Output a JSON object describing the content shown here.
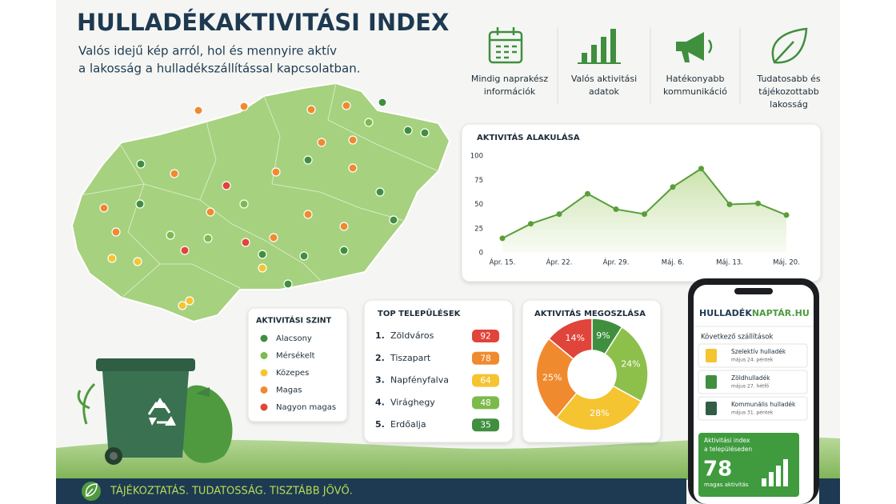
{
  "header": {
    "title": "HULLADÉKAKTIVITÁSI INDEX",
    "subtitle": [
      "Valós idejű kép arról, hol és mennyire aktív",
      "a lakosság a hulladékszállítással kapcsolatban."
    ]
  },
  "features": [
    {
      "label": [
        "Mindig naprakész",
        "információk"
      ]
    },
    {
      "label": [
        "Valós aktivitási",
        "adatok"
      ]
    },
    {
      "label": [
        "Hatékonyabb",
        "kommunikáció"
      ]
    },
    {
      "label": [
        "Tudatosabb és",
        "tájékozottabb",
        "lakosság"
      ]
    }
  ],
  "legend": {
    "title": "AKTIVITÁSI SZINT",
    "items": [
      {
        "label": "Alacsony",
        "color": "#3f8f3f"
      },
      {
        "label": "Mérsékelt",
        "color": "#7cba4a"
      },
      {
        "label": "Közepes",
        "color": "#f5c431"
      },
      {
        "label": "Magas",
        "color": "#f08a2e"
      },
      {
        "label": "Nagyon magas",
        "color": "#e0443a"
      }
    ]
  },
  "top": {
    "title": "TOP TELEPÜLÉSEK",
    "rows": [
      {
        "rank": "1.",
        "name": "Zöldváros",
        "score": 92,
        "color": "#e0443a"
      },
      {
        "rank": "2.",
        "name": "Tiszapart",
        "score": 78,
        "color": "#f08a2e"
      },
      {
        "rank": "3.",
        "name": "Napfényfalva",
        "score": 64,
        "color": "#f5c431"
      },
      {
        "rank": "4.",
        "name": "Virághegy",
        "score": 48,
        "color": "#7cba4a"
      },
      {
        "rank": "5.",
        "name": "Erdőalja",
        "score": 35,
        "color": "#3f8f3f"
      }
    ]
  },
  "chart_data": [
    {
      "type": "line",
      "title": "AKTIVITÁS ALAKULÁSA",
      "categories": [
        "Ápr. 15.",
        null,
        "Ápr. 22.",
        null,
        "Ápr. 29.",
        null,
        "Máj. 6.",
        null,
        "Máj. 13.",
        null,
        "Máj. 20."
      ],
      "series": [
        {
          "color": "#5a9e3a",
          "values": [
            15,
            30,
            40,
            61,
            45,
            40,
            68,
            87,
            50,
            51,
            39
          ]
        }
      ],
      "ylim": [
        0,
        100
      ],
      "yticks": [
        0,
        25,
        50,
        75,
        100
      ],
      "grid": false
    },
    {
      "type": "pie",
      "title": "AKTIVITÁS MEGOSZLÁSA",
      "values": [
        9,
        24,
        28,
        25,
        14
      ],
      "value_labels": [
        "9%",
        "24%",
        "28%",
        "25%",
        "14%"
      ],
      "colors": [
        "#3f8f3f",
        "#8cc04a",
        "#f5c431",
        "#f08a2e",
        "#e0443a"
      ]
    }
  ],
  "phone": {
    "logo": [
      "HULLADÉK",
      "NAPTÁR.HU"
    ],
    "section": "Következő szállítások",
    "items": [
      {
        "title": "Szelektív hulladék",
        "date": "május 24. péntek"
      },
      {
        "title": "Zöldhulladék",
        "date": "május 27. hétfő"
      },
      {
        "title": "Kommunális hulladék",
        "date": "május 31. péntek"
      }
    ],
    "index": {
      "label": [
        "Aktivitási index",
        "a településeden"
      ],
      "value": 78,
      "level": "magas aktivitás"
    }
  },
  "footer": {
    "text": "TÁJÉKOZTATÁS. TUDATOSSÁG. TISZTÁBB JÖVŐ."
  }
}
